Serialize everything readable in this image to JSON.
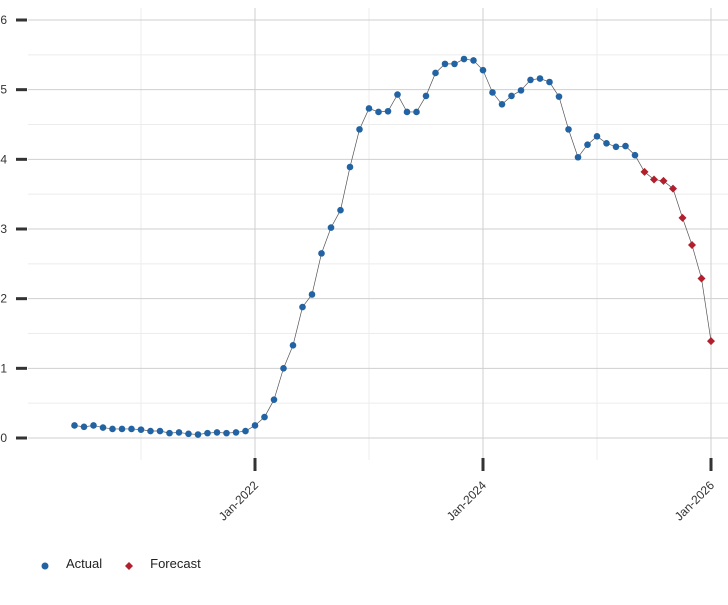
{
  "chart_data": {
    "type": "line",
    "title": "",
    "xlabel": "",
    "ylabel": "",
    "ylim": [
      0,
      6
    ],
    "yticks": [
      0,
      1,
      2,
      3,
      4,
      5,
      6
    ],
    "xticks": [
      {
        "date": "2022-01",
        "label": "Jan-2022"
      },
      {
        "date": "2024-01",
        "label": "Jan-2024"
      },
      {
        "date": "2026-01",
        "label": "Jan-2026"
      }
    ],
    "legend_position": "bottom-left",
    "grid": true,
    "series": [
      {
        "name": "Actual",
        "color": "#2163a3",
        "marker": "circle",
        "points": [
          {
            "x": "2020-06",
            "y": 0.18
          },
          {
            "x": "2020-07",
            "y": 0.16
          },
          {
            "x": "2020-08",
            "y": 0.18
          },
          {
            "x": "2020-09",
            "y": 0.15
          },
          {
            "x": "2020-10",
            "y": 0.13
          },
          {
            "x": "2020-11",
            "y": 0.13
          },
          {
            "x": "2020-12",
            "y": 0.13
          },
          {
            "x": "2021-01",
            "y": 0.12
          },
          {
            "x": "2021-02",
            "y": 0.1
          },
          {
            "x": "2021-03",
            "y": 0.1
          },
          {
            "x": "2021-04",
            "y": 0.07
          },
          {
            "x": "2021-05",
            "y": 0.08
          },
          {
            "x": "2021-06",
            "y": 0.06
          },
          {
            "x": "2021-07",
            "y": 0.05
          },
          {
            "x": "2021-08",
            "y": 0.07
          },
          {
            "x": "2021-09",
            "y": 0.08
          },
          {
            "x": "2021-10",
            "y": 0.07
          },
          {
            "x": "2021-11",
            "y": 0.08
          },
          {
            "x": "2021-12",
            "y": 0.1
          },
          {
            "x": "2022-01",
            "y": 0.18
          },
          {
            "x": "2022-02",
            "y": 0.3
          },
          {
            "x": "2022-03",
            "y": 0.55
          },
          {
            "x": "2022-04",
            "y": 1.0
          },
          {
            "x": "2022-05",
            "y": 1.33
          },
          {
            "x": "2022-06",
            "y": 1.88
          },
          {
            "x": "2022-07",
            "y": 2.06
          },
          {
            "x": "2022-08",
            "y": 2.65
          },
          {
            "x": "2022-09",
            "y": 3.02
          },
          {
            "x": "2022-10",
            "y": 3.27
          },
          {
            "x": "2022-11",
            "y": 3.89
          },
          {
            "x": "2022-12",
            "y": 4.43
          },
          {
            "x": "2023-01",
            "y": 4.73
          },
          {
            "x": "2023-02",
            "y": 4.68
          },
          {
            "x": "2023-03",
            "y": 4.69
          },
          {
            "x": "2023-04",
            "y": 4.93
          },
          {
            "x": "2023-05",
            "y": 4.68
          },
          {
            "x": "2023-06",
            "y": 4.68
          },
          {
            "x": "2023-07",
            "y": 4.91
          },
          {
            "x": "2023-08",
            "y": 5.24
          },
          {
            "x": "2023-09",
            "y": 5.37
          },
          {
            "x": "2023-10",
            "y": 5.37
          },
          {
            "x": "2023-11",
            "y": 5.44
          },
          {
            "x": "2023-12",
            "y": 5.42
          },
          {
            "x": "2024-01",
            "y": 5.28
          },
          {
            "x": "2024-02",
            "y": 4.96
          },
          {
            "x": "2024-03",
            "y": 4.79
          },
          {
            "x": "2024-04",
            "y": 4.91
          },
          {
            "x": "2024-05",
            "y": 4.99
          },
          {
            "x": "2024-06",
            "y": 5.14
          },
          {
            "x": "2024-07",
            "y": 5.16
          },
          {
            "x": "2024-08",
            "y": 5.11
          },
          {
            "x": "2024-09",
            "y": 4.9
          },
          {
            "x": "2024-10",
            "y": 4.43
          },
          {
            "x": "2024-11",
            "y": 4.03
          },
          {
            "x": "2024-12",
            "y": 4.21
          },
          {
            "x": "2025-01",
            "y": 4.33
          },
          {
            "x": "2025-02",
            "y": 4.23
          },
          {
            "x": "2025-03",
            "y": 4.18
          },
          {
            "x": "2025-04",
            "y": 4.19
          },
          {
            "x": "2025-05",
            "y": 4.06
          }
        ]
      },
      {
        "name": "Forecast",
        "color": "#b21f2d",
        "marker": "diamond",
        "points": [
          {
            "x": "2025-06",
            "y": 3.82
          },
          {
            "x": "2025-07",
            "y": 3.71
          },
          {
            "x": "2025-08",
            "y": 3.69
          },
          {
            "x": "2025-09",
            "y": 3.58
          },
          {
            "x": "2025-10",
            "y": 3.16
          },
          {
            "x": "2025-11",
            "y": 2.77
          },
          {
            "x": "2025-12",
            "y": 2.29
          },
          {
            "x": "2026-01",
            "y": 1.39
          }
        ]
      }
    ]
  }
}
